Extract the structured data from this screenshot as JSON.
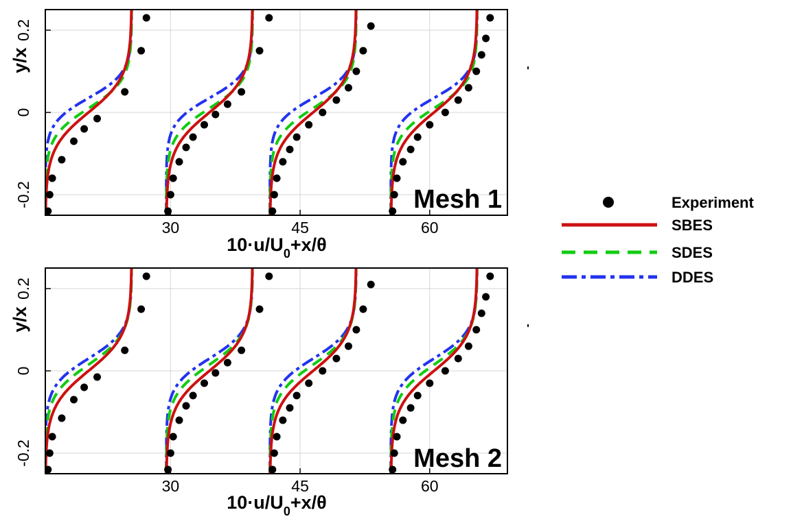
{
  "figure": {
    "panels": [
      {
        "mesh_label": "Mesh 1",
        "ylabel": "y/x",
        "xlabel_main": "10·u/U",
        "xlabel_sub": "0",
        "xlabel_tail": "+x/θ"
      },
      {
        "mesh_label": "Mesh 2",
        "ylabel": "y/x",
        "xlabel_main": "10·u/U",
        "xlabel_sub": "0",
        "xlabel_tail": "+x/θ"
      }
    ],
    "legend": [
      {
        "label": "Experiment",
        "color": "#000000",
        "style": "marker"
      },
      {
        "label": "SBES",
        "color": "#cc1111",
        "style": "solid"
      },
      {
        "label": "SDES",
        "color": "#11cc11",
        "style": "dashed"
      },
      {
        "label": "DDES",
        "color": "#2233ee",
        "style": "dashdot"
      }
    ]
  },
  "chart_data": [
    {
      "type": "line",
      "title": "Mesh 1",
      "xlabel": "10·u/U0+x/θ",
      "ylabel": "y/x",
      "xlim": [
        15.5,
        69
      ],
      "ylim": [
        -0.25,
        0.25
      ],
      "xticks": [
        30,
        45,
        60
      ],
      "yticks": [
        -0.2,
        0,
        0.2
      ],
      "grid": true,
      "legend_position": "right",
      "profile_offsets": [
        15.5,
        29.5,
        41.5,
        55.5
      ],
      "profile_amplitude": 10,
      "series": [
        {
          "name": "Experiment",
          "kind": "scatter",
          "per_profile": [
            {
              "y": [
                -0.24,
                -0.2,
                -0.16,
                -0.115,
                -0.07,
                -0.04,
                -0.015,
                0.05,
                0.15,
                0.23
              ],
              "x": [
                15.8,
                16.0,
                16.3,
                17.4,
                18.8,
                20.0,
                21.5,
                24.7,
                26.6,
                27.2
              ]
            },
            {
              "y": [
                -0.24,
                -0.2,
                -0.16,
                -0.12,
                -0.085,
                -0.06,
                -0.03,
                -0.005,
                0.02,
                0.05,
                0.15,
                0.23
              ],
              "x": [
                29.7,
                30.0,
                30.3,
                31.0,
                31.8,
                32.6,
                33.9,
                35.2,
                36.6,
                38.2,
                40.3,
                41.4
              ]
            },
            {
              "y": [
                -0.24,
                -0.2,
                -0.16,
                -0.12,
                -0.09,
                -0.06,
                -0.03,
                0.0,
                0.03,
                0.06,
                0.1,
                0.15,
                0.21
              ],
              "x": [
                41.8,
                42.0,
                42.3,
                43.0,
                43.8,
                44.6,
                46.0,
                47.6,
                49.2,
                50.6,
                51.5,
                52.3,
                53.2
              ]
            },
            {
              "y": [
                -0.24,
                -0.2,
                -0.16,
                -0.12,
                -0.09,
                -0.06,
                -0.03,
                0.0,
                0.03,
                0.06,
                0.1,
                0.14,
                0.18,
                0.23
              ],
              "x": [
                55.7,
                55.9,
                56.2,
                56.9,
                57.8,
                58.6,
                60.0,
                61.8,
                63.3,
                64.5,
                65.4,
                66.0,
                66.5,
                67.0
              ]
            }
          ]
        },
        {
          "name": "SBES",
          "kind": "line",
          "steepness": 11.5,
          "center": 0.0
        },
        {
          "name": "SDES",
          "kind": "line",
          "steepness": 14.5,
          "center": 0.01
        },
        {
          "name": "DDES",
          "kind": "line",
          "steepness": 16.5,
          "center": 0.035
        }
      ]
    },
    {
      "type": "line",
      "title": "Mesh 2",
      "xlabel": "10·u/U0+x/θ",
      "ylabel": "y/x",
      "xlim": [
        15.5,
        69
      ],
      "ylim": [
        -0.25,
        0.25
      ],
      "xticks": [
        30,
        45,
        60
      ],
      "yticks": [
        -0.2,
        0,
        0.2
      ],
      "grid": true,
      "legend_position": "right",
      "profile_offsets": [
        15.5,
        29.5,
        41.5,
        55.5
      ],
      "profile_amplitude": 10,
      "series": [
        {
          "name": "Experiment",
          "kind": "scatter",
          "per_profile": [
            {
              "y": [
                -0.24,
                -0.2,
                -0.16,
                -0.115,
                -0.07,
                -0.04,
                -0.015,
                0.05,
                0.15,
                0.23
              ],
              "x": [
                15.8,
                16.0,
                16.3,
                17.4,
                18.8,
                20.0,
                21.5,
                24.7,
                26.6,
                27.2
              ]
            },
            {
              "y": [
                -0.24,
                -0.2,
                -0.16,
                -0.12,
                -0.085,
                -0.06,
                -0.03,
                -0.005,
                0.02,
                0.05,
                0.15,
                0.23
              ],
              "x": [
                29.7,
                30.0,
                30.3,
                31.0,
                31.8,
                32.6,
                33.9,
                35.2,
                36.6,
                38.2,
                40.3,
                41.4
              ]
            },
            {
              "y": [
                -0.24,
                -0.2,
                -0.16,
                -0.12,
                -0.09,
                -0.06,
                -0.03,
                0.0,
                0.03,
                0.06,
                0.1,
                0.15,
                0.21
              ],
              "x": [
                41.8,
                42.0,
                42.3,
                43.0,
                43.8,
                44.6,
                46.0,
                47.6,
                49.2,
                50.6,
                51.5,
                52.3,
                53.2
              ]
            },
            {
              "y": [
                -0.24,
                -0.2,
                -0.16,
                -0.12,
                -0.09,
                -0.06,
                -0.03,
                0.0,
                0.03,
                0.06,
                0.1,
                0.14,
                0.18,
                0.23
              ],
              "x": [
                55.7,
                55.9,
                56.2,
                56.9,
                57.8,
                58.6,
                60.0,
                61.8,
                63.3,
                64.5,
                65.4,
                66.0,
                66.5,
                67.0
              ]
            }
          ]
        },
        {
          "name": "SBES",
          "kind": "line",
          "steepness": 11.5,
          "center": 0.0
        },
        {
          "name": "SDES",
          "kind": "line",
          "steepness": 13.5,
          "center": 0.015
        },
        {
          "name": "DDES",
          "kind": "line",
          "steepness": 15.0,
          "center": 0.03
        }
      ]
    }
  ]
}
